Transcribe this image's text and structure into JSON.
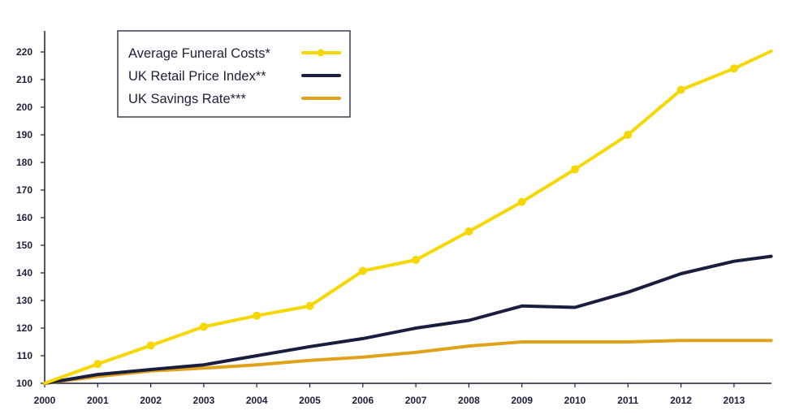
{
  "chart_data": {
    "type": "line",
    "title": "",
    "xlabel": "",
    "ylabel": "",
    "x": [
      2000,
      2001,
      2002,
      2003,
      2004,
      2005,
      2006,
      2007,
      2008,
      2009,
      2010,
      2011,
      2012,
      2013,
      2013.7
    ],
    "x_tick_labels": [
      "2000",
      "2001",
      "2002",
      "2003",
      "2004",
      "2005",
      "2006",
      "2007",
      "2008",
      "2009",
      "2010",
      "2011",
      "2012",
      "2013"
    ],
    "y_tick_labels": [
      "100",
      "110",
      "120",
      "130",
      "140",
      "150",
      "160",
      "170",
      "180",
      "190",
      "200",
      "210",
      "220"
    ],
    "xlim": [
      2000,
      2013.7
    ],
    "ylim": [
      100,
      226
    ],
    "grid": false,
    "legend_position": "top-left",
    "series": [
      {
        "name": "Average Funeral Costs*",
        "color": "#f6d700",
        "markers": true,
        "values": [
          100,
          107,
          113.7,
          120.5,
          124.5,
          128,
          140.7,
          144.7,
          155,
          165.7,
          177.5,
          190,
          206.3,
          214,
          220.3
        ]
      },
      {
        "name": "UK Retail Price Index**",
        "color": "#1a1e3e",
        "markers": false,
        "values": [
          100,
          103.2,
          105,
          106.7,
          110,
          113.3,
          116.2,
          120,
          122.8,
          128,
          127.5,
          133,
          139.7,
          144.2,
          146
        ]
      },
      {
        "name": "UK Savings Rate***",
        "color": "#e0a21a",
        "markers": false,
        "values": [
          100,
          102.5,
          104.5,
          105.5,
          106.7,
          108.3,
          109.5,
          111.2,
          113.5,
          115,
          115,
          115,
          115.5,
          115.5,
          115.5
        ]
      }
    ]
  }
}
